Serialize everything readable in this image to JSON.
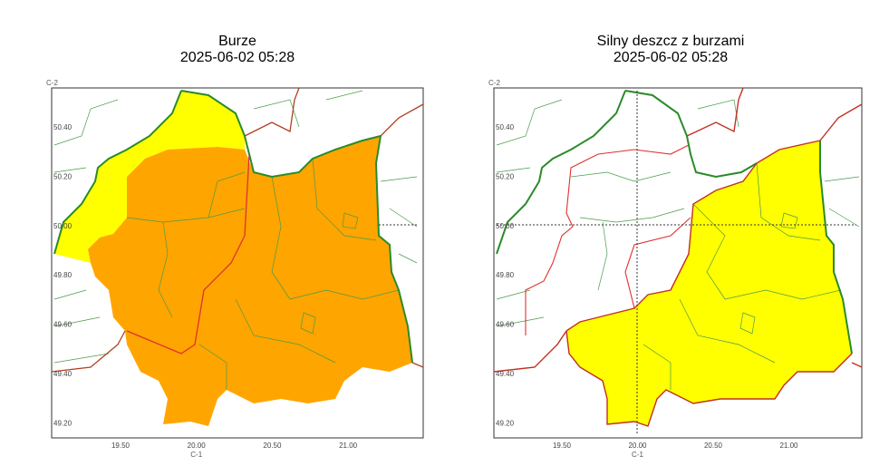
{
  "panels": [
    {
      "title": "Burze",
      "date": "2025-06-02 05:28",
      "corner_y": "C-2",
      "corner_x": "C-1",
      "yticks": [
        "50.40",
        "50.20",
        "50.00",
        "49.80",
        "49.60",
        "49.40",
        "49.20"
      ],
      "xticks": [
        "19.50",
        "20.00",
        "20.50",
        "21.00"
      ]
    },
    {
      "title": "Silny deszcz z burzami",
      "date": "2025-06-02 05:28",
      "corner_y": "C-2",
      "corner_x": "C-1",
      "yticks": [
        "50.40",
        "50.20",
        "50.00",
        "49.80",
        "49.60",
        "49.40",
        "49.20"
      ],
      "xticks": [
        "19.50",
        "20.00",
        "20.50",
        "21.00"
      ]
    }
  ]
}
